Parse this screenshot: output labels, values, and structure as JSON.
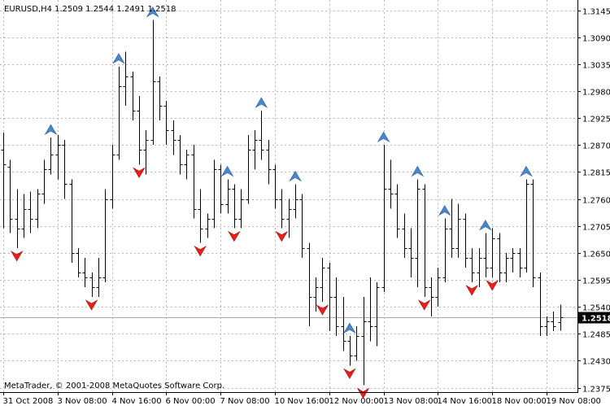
{
  "header": {
    "symbol": "EURUSD,H4",
    "ohlc": "1.2509 1.2544 1.2491 1.2518"
  },
  "footer": {
    "copyright": "MetaTrader, © 2001-2008 MetaQuotes Software Corp."
  },
  "price_axis": {
    "ticks": [
      "1.3145",
      "1.3090",
      "1.3035",
      "1.2980",
      "1.2925",
      "1.2870",
      "1.2815",
      "1.2760",
      "1.2705",
      "1.2650",
      "1.2595",
      "1.2540",
      "1.2485",
      "1.2430",
      "1.2375"
    ],
    "current_price": "1.2518"
  },
  "time_axis": {
    "ticks": [
      "31 Oct 2008",
      "3 Nov 08:00",
      "4 Nov 16:00",
      "6 Nov 00:00",
      "7 Nov 08:00",
      "10 Nov 16:00",
      "12 Nov 00:00",
      "13 Nov 08:00",
      "14 Nov 16:00",
      "18 Nov 00:00",
      "19 Nov 08:00"
    ]
  },
  "colors": {
    "background": "#ffffff",
    "bars": "#000000",
    "grid": "#b8b8b8",
    "up_arrow": "#4a86c8",
    "down_arrow": "#e8201a",
    "price_label_bg": "#000000",
    "price_label_text": "#ffffff"
  },
  "chart_data": {
    "type": "ohlc",
    "symbol": "EURUSD",
    "timeframe": "H4",
    "ylim": [
      1.2365,
      1.3155
    ],
    "ohlc": [
      [
        1.286,
        1.2895,
        1.27,
        1.283
      ],
      [
        1.2825,
        1.284,
        1.269,
        1.272
      ],
      [
        1.272,
        1.278,
        1.266,
        1.27
      ],
      [
        1.27,
        1.277,
        1.268,
        1.274
      ],
      [
        1.274,
        1.2775,
        1.269,
        1.272
      ],
      [
        1.272,
        1.278,
        1.27,
        1.277
      ],
      [
        1.277,
        1.284,
        1.275,
        1.282
      ],
      [
        1.282,
        1.2885,
        1.281,
        1.285
      ],
      [
        1.285,
        1.289,
        1.28,
        1.287
      ],
      [
        1.287,
        1.288,
        1.276,
        1.279
      ],
      [
        1.279,
        1.28,
        1.263,
        1.265
      ],
      [
        1.265,
        1.266,
        1.26,
        1.261
      ],
      [
        1.261,
        1.264,
        1.258,
        1.26
      ],
      [
        1.26,
        1.261,
        1.256,
        1.258
      ],
      [
        1.258,
        1.264,
        1.256,
        1.26
      ],
      [
        1.26,
        1.278,
        1.259,
        1.276
      ],
      [
        1.276,
        1.287,
        1.274,
        1.285
      ],
      [
        1.285,
        1.303,
        1.284,
        1.299
      ],
      [
        1.299,
        1.306,
        1.295,
        1.301
      ],
      [
        1.301,
        1.302,
        1.292,
        1.294
      ],
      [
        1.294,
        1.297,
        1.283,
        1.286
      ],
      [
        1.286,
        1.29,
        1.281,
        1.288
      ],
      [
        1.288,
        1.3125,
        1.287,
        1.3
      ],
      [
        1.3,
        1.301,
        1.292,
        1.295
      ],
      [
        1.295,
        1.296,
        1.287,
        1.29
      ],
      [
        1.29,
        1.292,
        1.285,
        1.288
      ],
      [
        1.288,
        1.289,
        1.281,
        1.283
      ],
      [
        1.283,
        1.286,
        1.28,
        1.285
      ],
      [
        1.285,
        1.287,
        1.272,
        1.274
      ],
      [
        1.274,
        1.278,
        1.267,
        1.27
      ],
      [
        1.27,
        1.273,
        1.268,
        1.272
      ],
      [
        1.272,
        1.284,
        1.27,
        1.282
      ],
      [
        1.282,
        1.283,
        1.273,
        1.275
      ],
      [
        1.275,
        1.28,
        1.273,
        1.278
      ],
      [
        1.278,
        1.279,
        1.27,
        1.272
      ],
      [
        1.272,
        1.278,
        1.27,
        1.276
      ],
      [
        1.276,
        1.289,
        1.275,
        1.286
      ],
      [
        1.286,
        1.29,
        1.282,
        1.288
      ],
      [
        1.288,
        1.294,
        1.284,
        1.286
      ],
      [
        1.286,
        1.288,
        1.279,
        1.282
      ],
      [
        1.282,
        1.283,
        1.274,
        1.276
      ],
      [
        1.276,
        1.278,
        1.27,
        1.272
      ],
      [
        1.272,
        1.276,
        1.268,
        1.274
      ],
      [
        1.274,
        1.279,
        1.272,
        1.276
      ],
      [
        1.276,
        1.277,
        1.264,
        1.266
      ],
      [
        1.266,
        1.267,
        1.25,
        1.256
      ],
      [
        1.256,
        1.26,
        1.253,
        1.258
      ],
      [
        1.258,
        1.264,
        1.255,
        1.262
      ],
      [
        1.262,
        1.263,
        1.249,
        1.256
      ],
      [
        1.256,
        1.26,
        1.248,
        1.25
      ],
      [
        1.25,
        1.256,
        1.245,
        1.247
      ],
      [
        1.247,
        1.248,
        1.242,
        1.244
      ],
      [
        1.244,
        1.25,
        1.243,
        1.248
      ],
      [
        1.248,
        1.256,
        1.238,
        1.251
      ],
      [
        1.251,
        1.26,
        1.247,
        1.25
      ],
      [
        1.25,
        1.259,
        1.246,
        1.258
      ],
      [
        1.258,
        1.287,
        1.257,
        1.278
      ],
      [
        1.278,
        1.284,
        1.274,
        1.277
      ],
      [
        1.277,
        1.279,
        1.268,
        1.27
      ],
      [
        1.27,
        1.273,
        1.264,
        1.266
      ],
      [
        1.266,
        1.27,
        1.26,
        1.264
      ],
      [
        1.264,
        1.28,
        1.258,
        1.278
      ],
      [
        1.278,
        1.279,
        1.256,
        1.258
      ],
      [
        1.258,
        1.26,
        1.252,
        1.256
      ],
      [
        1.256,
        1.262,
        1.254,
        1.26
      ],
      [
        1.26,
        1.272,
        1.259,
        1.27
      ],
      [
        1.27,
        1.276,
        1.264,
        1.266
      ],
      [
        1.266,
        1.275,
        1.264,
        1.272
      ],
      [
        1.272,
        1.273,
        1.262,
        1.264
      ],
      [
        1.264,
        1.266,
        1.259,
        1.261
      ],
      [
        1.261,
        1.266,
        1.258,
        1.264
      ],
      [
        1.264,
        1.269,
        1.26,
        1.262
      ],
      [
        1.262,
        1.27,
        1.26,
        1.268
      ],
      [
        1.268,
        1.269,
        1.259,
        1.261
      ],
      [
        1.261,
        1.265,
        1.259,
        1.264
      ],
      [
        1.264,
        1.266,
        1.261,
        1.265
      ],
      [
        1.265,
        1.266,
        1.26,
        1.262
      ],
      [
        1.262,
        1.28,
        1.261,
        1.279
      ],
      [
        1.279,
        1.28,
        1.258,
        1.26
      ],
      [
        1.26,
        1.261,
        1.248,
        1.25
      ],
      [
        1.25,
        1.252,
        1.248,
        1.251
      ],
      [
        1.251,
        1.253,
        1.249,
        1.25
      ],
      [
        1.2509,
        1.2544,
        1.2491,
        1.2518
      ]
    ],
    "fractals": [
      {
        "bar": 7,
        "type": "up"
      },
      {
        "bar": 17,
        "type": "up"
      },
      {
        "bar": 22,
        "type": "up"
      },
      {
        "bar": 33,
        "type": "up"
      },
      {
        "bar": 38,
        "type": "up"
      },
      {
        "bar": 43,
        "type": "up"
      },
      {
        "bar": 51,
        "type": "up"
      },
      {
        "bar": 56,
        "type": "up"
      },
      {
        "bar": 61,
        "type": "up"
      },
      {
        "bar": 65,
        "type": "up"
      },
      {
        "bar": 71,
        "type": "up"
      },
      {
        "bar": 77,
        "type": "up"
      },
      {
        "bar": 2,
        "type": "down"
      },
      {
        "bar": 13,
        "type": "down"
      },
      {
        "bar": 20,
        "type": "down"
      },
      {
        "bar": 29,
        "type": "down"
      },
      {
        "bar": 34,
        "type": "down"
      },
      {
        "bar": 41,
        "type": "down"
      },
      {
        "bar": 47,
        "type": "down"
      },
      {
        "bar": 51,
        "type": "down"
      },
      {
        "bar": 53,
        "type": "down"
      },
      {
        "bar": 62,
        "type": "down"
      },
      {
        "bar": 69,
        "type": "down"
      },
      {
        "bar": 72,
        "type": "down"
      }
    ]
  }
}
